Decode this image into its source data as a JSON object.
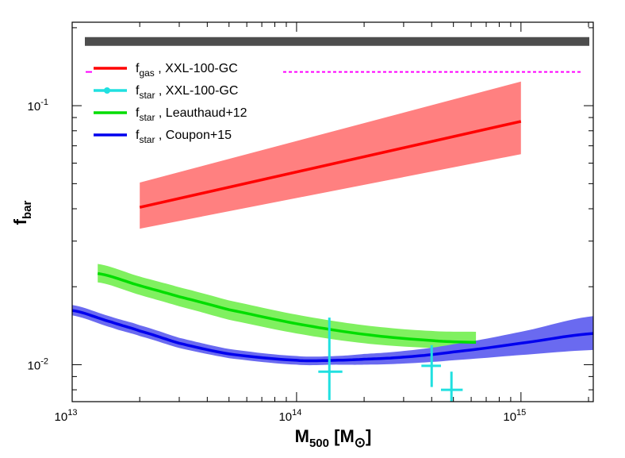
{
  "chart_data": {
    "type": "line",
    "xscale": "log",
    "yscale": "log",
    "xlim": [
      10000000000000.0,
      2100000000000000.0
    ],
    "ylim": [
      0.0072,
      0.21
    ],
    "xlabel": {
      "main": "M",
      "sub": "500",
      "unit_open": " [M",
      "unit_sym": "⊙",
      "unit_close": "]"
    },
    "ylabel": {
      "main": "f",
      "sub": "bar"
    },
    "xticks": [
      {
        "value": 10000000000000.0,
        "base": "10",
        "exp": "13"
      },
      {
        "value": 100000000000000.0,
        "base": "10",
        "exp": "14"
      },
      {
        "value": 1000000000000000.0,
        "base": "10",
        "exp": "15"
      }
    ],
    "yticks": [
      {
        "value": 0.01,
        "base": "10",
        "exp": "-2"
      },
      {
        "value": 0.1,
        "base": "10",
        "exp": "-1"
      }
    ],
    "reference_lines": [
      {
        "name": "cosmic-baryon-fraction",
        "y": 0.177,
        "x_range": [
          10000000000000.0,
          2000000000000000.0
        ],
        "color": "#4d4d4d",
        "style": "thick"
      },
      {
        "name": "upper-limit",
        "y": 0.135,
        "x_range": [
          10000000000000.0,
          2000000000000000.0
        ],
        "color": "#ff00ff",
        "style": "dotted"
      }
    ],
    "series": [
      {
        "name": "fgas-XXL-100-GC",
        "label_main": "f",
        "label_sub": "gas",
        "label_rest": " , XXL-100-GC",
        "color": "#ff0000",
        "band_color": "#ff8080",
        "x": [
          20000000000000.0,
          1000000000000000.0
        ],
        "y": [
          0.0405,
          0.087
        ],
        "lower": [
          0.0335,
          0.065
        ],
        "upper": [
          0.0505,
          0.124
        ]
      },
      {
        "name": "fstar-Leauthaud12",
        "label_main": "f",
        "label_sub": "star",
        "label_rest": " , Leauthaud+12",
        "color": "#00dd00",
        "band_color": "#80f060",
        "x": [
          13000000000000.0,
          20000000000000.0,
          30000000000000.0,
          50000000000000.0,
          100000000000000.0,
          200000000000000.0,
          400000000000000.0,
          630000000000000.0
        ],
        "y": [
          0.0225,
          0.0202,
          0.0183,
          0.0163,
          0.0144,
          0.0131,
          0.0124,
          0.0122
        ],
        "lower": [
          0.0208,
          0.0186,
          0.0168,
          0.0149,
          0.0132,
          0.0121,
          0.0116,
          0.0115
        ],
        "upper": [
          0.0245,
          0.0219,
          0.0199,
          0.0177,
          0.0156,
          0.0142,
          0.0135,
          0.0134
        ]
      },
      {
        "name": "fstar-Coupon15",
        "label_main": "f",
        "label_sub": "star",
        "label_rest": " , Coupon+15",
        "color": "#0000ee",
        "band_color": "#6a6af0",
        "x": [
          10000000000000.0,
          15000000000000.0,
          20000000000000.0,
          30000000000000.0,
          50000000000000.0,
          100000000000000.0,
          150000000000000.0,
          200000000000000.0,
          300000000000000.0,
          500000000000000.0,
          1000000000000000.0,
          2100000000000000.0
        ],
        "y": [
          0.0162,
          0.0146,
          0.0135,
          0.0121,
          0.011,
          0.0104,
          0.0104,
          0.0105,
          0.0107,
          0.0112,
          0.0121,
          0.0132
        ],
        "lower": [
          0.0155,
          0.0139,
          0.0129,
          0.0116,
          0.0106,
          0.01,
          0.01,
          0.01,
          0.0101,
          0.0104,
          0.0109,
          0.0114
        ],
        "upper": [
          0.017,
          0.0153,
          0.0142,
          0.0127,
          0.0115,
          0.0108,
          0.0108,
          0.011,
          0.0113,
          0.012,
          0.0134,
          0.0154
        ]
      }
    ],
    "points": {
      "name": "fstar-XXL-100-GC",
      "label_main": "f",
      "label_sub": "star",
      "label_rest": " , XXL-100-GC",
      "color": "#20e0e0",
      "data": [
        {
          "x": 140000000000000.0,
          "y": 0.0094,
          "xerr": [
            125000000000000.0,
            160000000000000.0
          ],
          "yerr": [
            0.0073,
            0.0152
          ]
        },
        {
          "x": 400000000000000.0,
          "y": 0.0099,
          "xerr": [
            360000000000000.0,
            440000000000000.0
          ],
          "yerr": [
            0.0082,
            0.0119
          ]
        },
        {
          "x": 490000000000000.0,
          "y": 0.008,
          "xerr": [
            440000000000000.0,
            550000000000000.0
          ],
          "yerr": [
            0.0072,
            0.0094
          ]
        }
      ]
    },
    "legend_order": [
      "fgas-XXL-100-GC",
      "fstar-XXL-100-GC",
      "fstar-Leauthaud12",
      "fstar-Coupon15"
    ],
    "legend_position": "top-left"
  }
}
